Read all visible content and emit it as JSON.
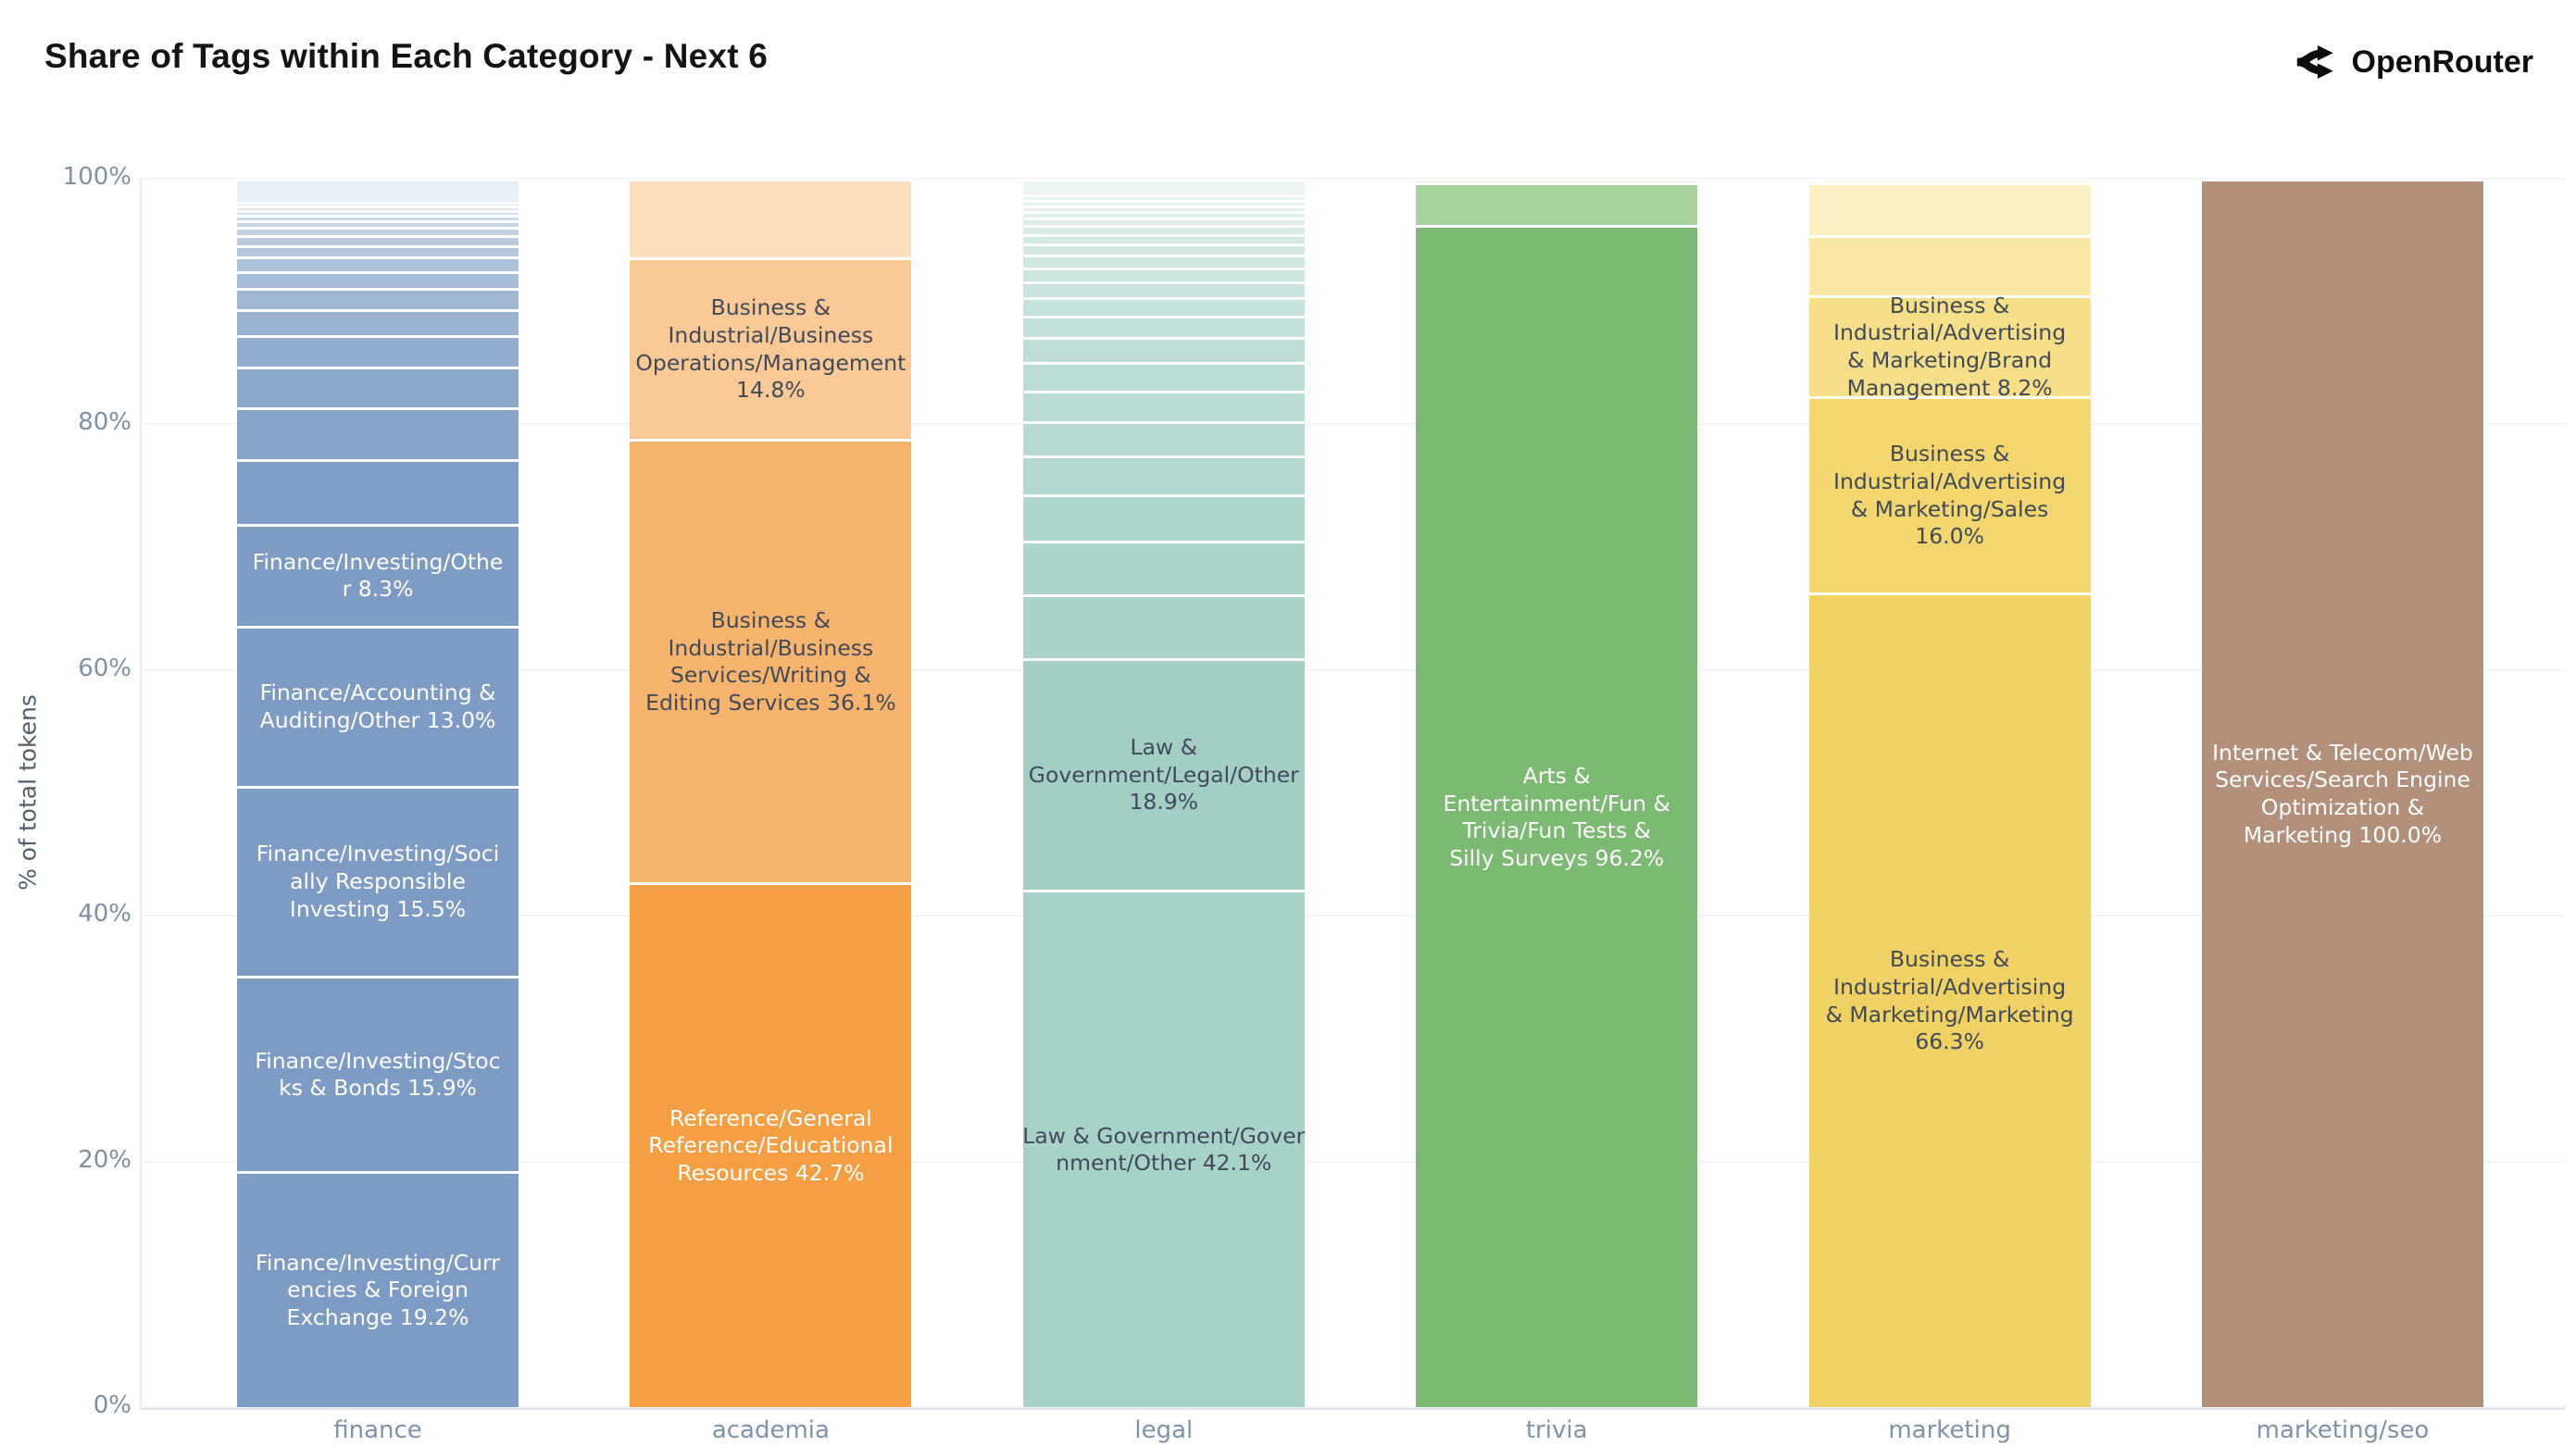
{
  "header": {
    "brand": "OpenRouter"
  },
  "chart_data": {
    "type": "stacked_bar_percent",
    "title": "Share of Tags within Each Category - Next 6",
    "ylabel": "% of total tokens",
    "ylim": [
      0,
      100
    ],
    "yticks": [
      "0%",
      "20%",
      "40%",
      "60%",
      "80%",
      "100%"
    ],
    "grid": "horizontal",
    "legend": "none",
    "categories": [
      "finance",
      "academia",
      "legal",
      "trivia",
      "marketing",
      "marketing/seo"
    ],
    "bars": [
      {
        "category": "finance",
        "segments": [
          {
            "value": 19.2,
            "label": "Finance/Investing/Curr\nencies & Foreign\nExchange 19.2%",
            "color": "#7d9cc3",
            "text_color": "#ffffff"
          },
          {
            "value": 15.9,
            "label": "Finance/Investing/Stoc\nks & Bonds 15.9%",
            "color": "#7d9cc3",
            "text_color": "#ffffff"
          },
          {
            "value": 15.5,
            "label": "Finance/Investing/Soci\nally Responsible\nInvesting 15.5%",
            "color": "#7d9cc3",
            "text_color": "#ffffff"
          },
          {
            "value": 13.0,
            "label": "Finance/Accounting &\nAuditing/Other 13.0%",
            "color": "#7d9cc3",
            "text_color": "#ffffff"
          },
          {
            "value": 8.3,
            "label": "Finance/Investing/Othe\nr 8.3%",
            "color": "#7d9cc3",
            "text_color": "#ffffff"
          }
        ],
        "unlabeled_segments": {
          "values": [
            5.3,
            4.2,
            3.3,
            2.6,
            2.1,
            1.7,
            1.4,
            1.15,
            0.95,
            0.8,
            0.65,
            0.55,
            0.45,
            0.4,
            0.35,
            0.3,
            1.9
          ],
          "color_from": "#7f9ec5",
          "color_to": "#e8eef5"
        }
      },
      {
        "category": "academia",
        "segments": [
          {
            "value": 42.7,
            "label": "Reference/General\nReference/Educational\nResources 42.7%",
            "color": "#f59f44",
            "text_color": "#ffffff"
          },
          {
            "value": 36.1,
            "label": "Business &\nIndustrial/Business\nServices/Writing &\nEditing Services 36.1%",
            "color": "#f7b46f",
            "text_color": "#404a59"
          },
          {
            "value": 14.8,
            "label": "Business &\nIndustrial/Business\nOperations/Management\n14.8%",
            "color": "#f9c998",
            "text_color": "#404a59"
          }
        ],
        "unlabeled_segments": {
          "values": [
            6.4
          ],
          "color_from": "#fbdfbf",
          "color_to": "#fbdfbf"
        }
      },
      {
        "category": "legal",
        "segments": [
          {
            "value": 42.1,
            "label": "Law & Government/Gover\nnment/Other 42.1%",
            "color": "#a7d2c9",
            "text_color": "#404a59"
          },
          {
            "value": 18.9,
            "label": "Law &\nGovernment/Legal/Other\n18.9%",
            "color": "#a2cec5",
            "text_color": "#404a59"
          }
        ],
        "unlabeled_segments": {
          "values": [
            5.15,
            4.4,
            3.75,
            3.2,
            2.75,
            2.5,
            2.35,
            2.0,
            1.75,
            1.5,
            1.3,
            1.15,
            1.0,
            0.9,
            0.8,
            0.7,
            0.6,
            0.55,
            0.5,
            0.45,
            0.4,
            1.3
          ],
          "color_from": "#a9d3cb",
          "color_to": "#ecf5f2"
        }
      },
      {
        "category": "trivia",
        "segments": [
          {
            "value": 96.2,
            "label": "Arts &\nEntertainment/Fun &\nTrivia/Fun Tests &\nSilly Surveys 96.2%",
            "color": "#7cb972",
            "text_color": "#ffffff"
          }
        ],
        "unlabeled_segments": {
          "values": [
            3.5,
            0.3
          ],
          "color_from": "#a9d29f",
          "color_to": "#e3efe0"
        }
      },
      {
        "category": "marketing",
        "segments": [
          {
            "value": 66.3,
            "label": "Business &\nIndustrial/Advertising\n& Marketing/Marketing\n66.3%",
            "color": "#efd164",
            "text_color": "#404a59"
          },
          {
            "value": 16.0,
            "label": "Business &\nIndustrial/Advertising\n& Marketing/Sales\n16.0%",
            "color": "#f3d76e",
            "text_color": "#404a59"
          },
          {
            "value": 8.2,
            "label": "Business &\nIndustrial/Advertising\n& Marketing/Brand\nManagement 8.2%",
            "color": "#f6df88",
            "text_color": "#404a59"
          }
        ],
        "unlabeled_segments": {
          "values": [
            4.9,
            4.3,
            0.3
          ],
          "color_from": "#f9e8a6",
          "color_to": "#fdf7e0"
        }
      },
      {
        "category": "marketing/seo",
        "segments": [
          {
            "value": 100.0,
            "label": "Internet & Telecom/Web\nServices/Search Engine\nOptimization &\nMarketing 100.0%",
            "color": "#b29079",
            "text_color": "#ffffff"
          }
        ],
        "unlabeled_segments": {
          "values": [],
          "color_from": "#b29079",
          "color_to": "#b29079"
        }
      }
    ]
  }
}
